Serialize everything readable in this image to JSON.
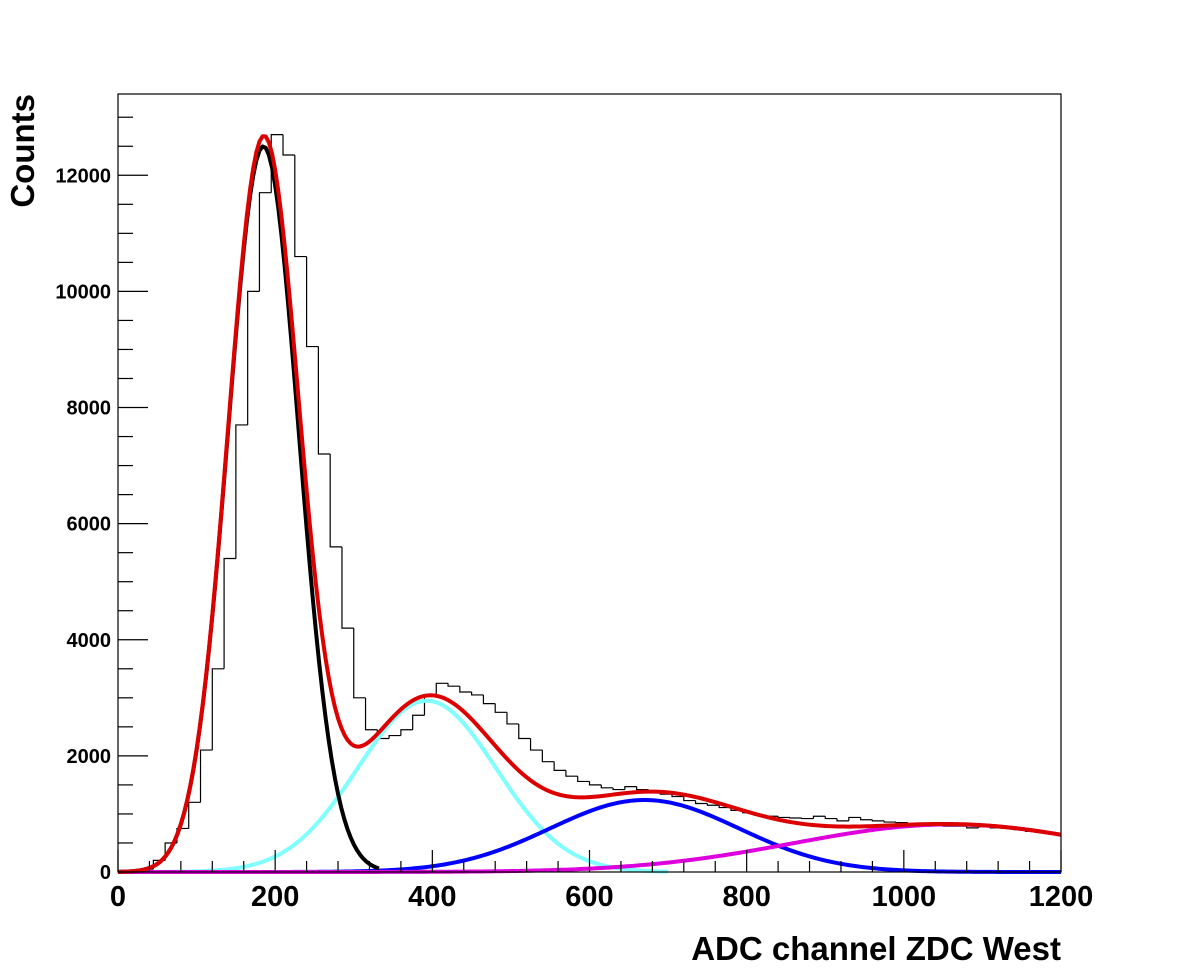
{
  "chart_data": {
    "type": "histogram",
    "xlabel": "ADC channel ZDC West",
    "ylabel": "Counts",
    "xlim": [
      0,
      1200
    ],
    "ylim": [
      0,
      13400
    ],
    "x_ticks": [
      0,
      200,
      400,
      600,
      800,
      1000,
      1200
    ],
    "x_tick_labels": [
      "0",
      "200",
      "400",
      "600",
      "800",
      "1000",
      "1200"
    ],
    "y_ticks": [
      0,
      2000,
      4000,
      6000,
      8000,
      10000,
      12000
    ],
    "y_tick_labels": [
      "0",
      "2000",
      "4000",
      "6000",
      "8000",
      "10000",
      "12000"
    ],
    "grid": false,
    "histogram": {
      "bin_width": 15,
      "bins": [
        {
          "x": 0,
          "y": 0
        },
        {
          "x": 15,
          "y": 10
        },
        {
          "x": 30,
          "y": 50
        },
        {
          "x": 45,
          "y": 200
        },
        {
          "x": 60,
          "y": 500
        },
        {
          "x": 75,
          "y": 750
        },
        {
          "x": 90,
          "y": 1200
        },
        {
          "x": 105,
          "y": 2100
        },
        {
          "x": 120,
          "y": 3500
        },
        {
          "x": 135,
          "y": 5400
        },
        {
          "x": 150,
          "y": 7700
        },
        {
          "x": 165,
          "y": 10000
        },
        {
          "x": 180,
          "y": 11700
        },
        {
          "x": 195,
          "y": 12700
        },
        {
          "x": 210,
          "y": 12350
        },
        {
          "x": 225,
          "y": 10600
        },
        {
          "x": 240,
          "y": 9050
        },
        {
          "x": 255,
          "y": 7200
        },
        {
          "x": 270,
          "y": 5600
        },
        {
          "x": 285,
          "y": 4200
        },
        {
          "x": 300,
          "y": 3000
        },
        {
          "x": 315,
          "y": 2450
        },
        {
          "x": 330,
          "y": 2300
        },
        {
          "x": 345,
          "y": 2350
        },
        {
          "x": 360,
          "y": 2450
        },
        {
          "x": 375,
          "y": 2700
        },
        {
          "x": 390,
          "y": 3050
        },
        {
          "x": 405,
          "y": 3250
        },
        {
          "x": 420,
          "y": 3200
        },
        {
          "x": 435,
          "y": 3100
        },
        {
          "x": 450,
          "y": 3050
        },
        {
          "x": 465,
          "y": 2900
        },
        {
          "x": 480,
          "y": 2750
        },
        {
          "x": 495,
          "y": 2550
        },
        {
          "x": 510,
          "y": 2300
        },
        {
          "x": 525,
          "y": 2100
        },
        {
          "x": 540,
          "y": 1900
        },
        {
          "x": 555,
          "y": 1750
        },
        {
          "x": 570,
          "y": 1650
        },
        {
          "x": 585,
          "y": 1560
        },
        {
          "x": 600,
          "y": 1500
        },
        {
          "x": 615,
          "y": 1450
        },
        {
          "x": 630,
          "y": 1420
        },
        {
          "x": 645,
          "y": 1470
        },
        {
          "x": 660,
          "y": 1420
        },
        {
          "x": 675,
          "y": 1380
        },
        {
          "x": 690,
          "y": 1340
        },
        {
          "x": 705,
          "y": 1300
        },
        {
          "x": 720,
          "y": 1230
        },
        {
          "x": 735,
          "y": 1180
        },
        {
          "x": 750,
          "y": 1150
        },
        {
          "x": 765,
          "y": 1110
        },
        {
          "x": 780,
          "y": 1060
        },
        {
          "x": 795,
          "y": 1020
        },
        {
          "x": 810,
          "y": 980
        },
        {
          "x": 825,
          "y": 960
        },
        {
          "x": 840,
          "y": 940
        },
        {
          "x": 855,
          "y": 930
        },
        {
          "x": 870,
          "y": 920
        },
        {
          "x": 885,
          "y": 960
        },
        {
          "x": 900,
          "y": 920
        },
        {
          "x": 915,
          "y": 880
        },
        {
          "x": 930,
          "y": 940
        },
        {
          "x": 945,
          "y": 900
        },
        {
          "x": 960,
          "y": 880
        },
        {
          "x": 975,
          "y": 860
        },
        {
          "x": 990,
          "y": 850
        },
        {
          "x": 1005,
          "y": 830
        },
        {
          "x": 1020,
          "y": 810
        },
        {
          "x": 1035,
          "y": 800
        },
        {
          "x": 1050,
          "y": 790
        },
        {
          "x": 1065,
          "y": 790
        },
        {
          "x": 1080,
          "y": 760
        },
        {
          "x": 1095,
          "y": 780
        },
        {
          "x": 1110,
          "y": 760
        },
        {
          "x": 1125,
          "y": 750
        },
        {
          "x": 1140,
          "y": 730
        },
        {
          "x": 1155,
          "y": 700
        },
        {
          "x": 1170,
          "y": 680
        },
        {
          "x": 1185,
          "y": 660
        }
      ]
    },
    "series": [
      {
        "color": "#000000",
        "peak_x": 185,
        "peak_y": 12500,
        "sigma": 45,
        "x_range": [
          0,
          335
        ]
      },
      {
        "color": "#80ffff",
        "peak_x": 393,
        "peak_y": 2950,
        "sigma": 88,
        "x_range": [
          0,
          700
        ]
      },
      {
        "color": "#0000ff",
        "peak_x": 670,
        "peak_y": 1240,
        "sigma": 120,
        "x_range": [
          0,
          1200
        ]
      },
      {
        "color": "#dd00dd",
        "peak_x": 1060,
        "peak_y": 820,
        "sigma": 200,
        "x_range": [
          0,
          1200
        ]
      },
      {
        "color": "#dd0000",
        "total_fit": true,
        "x_range": [
          0,
          1200
        ]
      }
    ]
  }
}
